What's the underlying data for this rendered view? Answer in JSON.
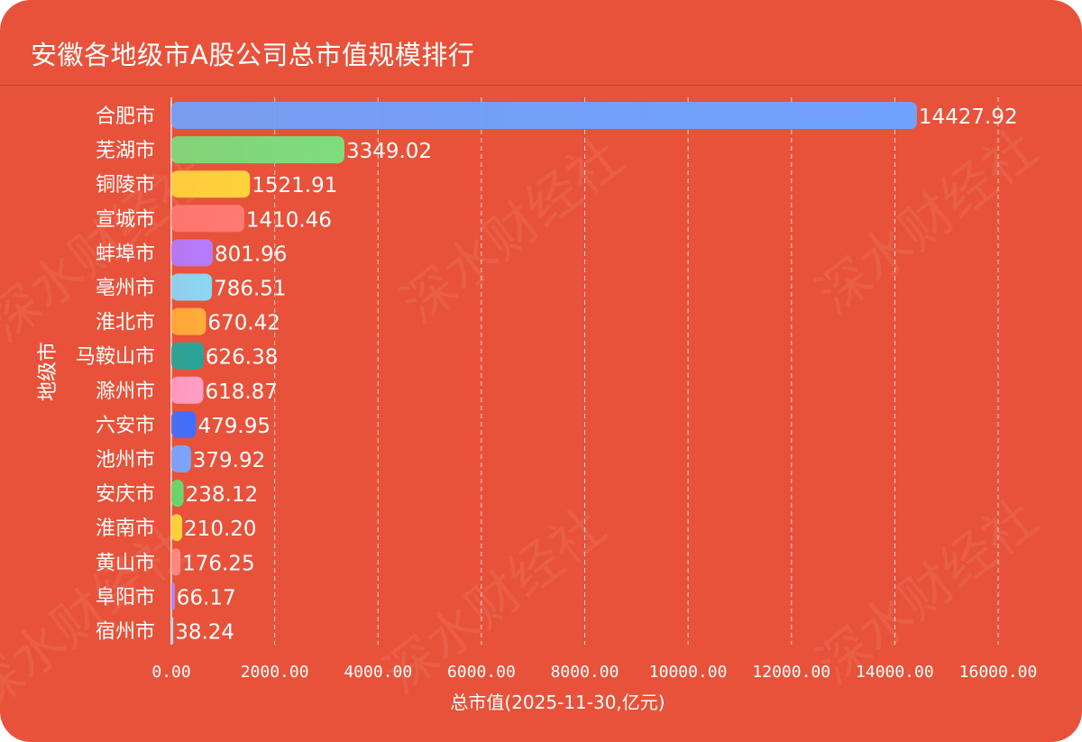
{
  "title": "安徽各地级市A股公司总市值规模排行",
  "watermark": "深水财经社",
  "colors": {
    "background": "#E8523A",
    "text": "#ffffff",
    "bars": [
      "#6FA3FF",
      "#7DDD7D",
      "#FFD43B",
      "#FF7A72",
      "#B57BFF",
      "#8AD8F5",
      "#FFAD3B",
      "#26A69A",
      "#FF9EC6",
      "#3F6FFF",
      "#78A6FF",
      "#67D86E",
      "#FFD43B",
      "#FF8A80",
      "#A98BFF",
      "#9FE0F5"
    ]
  },
  "chart_data": {
    "type": "bar",
    "orientation": "horizontal",
    "title": "安徽各地级市A股公司总市值规模排行",
    "xlabel": "总市值(2025-11-30,亿元)",
    "ylabel": "地级市",
    "xlim": [
      0,
      16000
    ],
    "xticks": [
      "0.00",
      "2000.00",
      "4000.00",
      "6000.00",
      "8000.00",
      "10000.00",
      "12000.00",
      "14000.00",
      "16000.00"
    ],
    "grid": "vertical-dashed",
    "categories": [
      "合肥市",
      "芜湖市",
      "铜陵市",
      "宣城市",
      "蚌埠市",
      "亳州市",
      "淮北市",
      "马鞍山市",
      "滁州市",
      "六安市",
      "池州市",
      "安庆市",
      "淮南市",
      "黄山市",
      "阜阳市",
      "宿州市"
    ],
    "values": [
      14427.92,
      3349.02,
      1521.91,
      1410.46,
      801.96,
      786.51,
      670.42,
      626.38,
      618.87,
      479.95,
      379.92,
      238.12,
      210.2,
      176.25,
      66.17,
      38.24
    ],
    "value_labels": [
      "14427.92",
      "3349.02",
      "1521.91",
      "1410.46",
      "801.96",
      "786.51",
      "670.42",
      "626.38",
      "618.87",
      "479.95",
      "379.92",
      "238.12",
      "210.20",
      "176.25",
      "66.17",
      "38.24"
    ]
  }
}
